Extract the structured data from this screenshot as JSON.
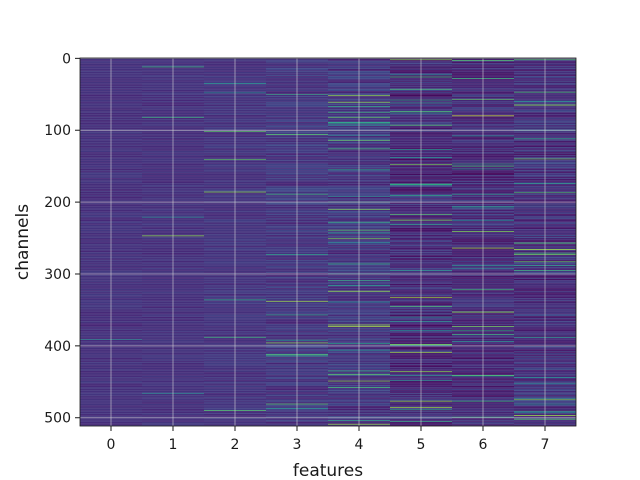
{
  "chart_data": {
    "type": "heatmap",
    "title": "",
    "xlabel": "features",
    "ylabel": "channels",
    "x_categories": [
      "0",
      "1",
      "2",
      "3",
      "4",
      "5",
      "6",
      "7"
    ],
    "y_ticks": [
      0,
      100,
      200,
      300,
      400,
      500
    ],
    "y_tick_labels": [
      "0",
      "100",
      "200",
      "300",
      "400",
      "500"
    ],
    "n_rows": 512,
    "n_cols": 8,
    "y_axis_inverted": true,
    "grid": true,
    "colormap": "viridis",
    "colorbar": false,
    "column_profiles": [
      {
        "feature": "0",
        "base": 0.18,
        "spread": 0.04,
        "bright_rate": 0.004
      },
      {
        "feature": "1",
        "base": 0.18,
        "spread": 0.04,
        "bright_rate": 0.006
      },
      {
        "feature": "2",
        "base": 0.19,
        "spread": 0.05,
        "bright_rate": 0.012
      },
      {
        "feature": "3",
        "base": 0.2,
        "spread": 0.08,
        "bright_rate": 0.03
      },
      {
        "feature": "4",
        "base": 0.2,
        "spread": 0.1,
        "bright_rate": 0.05
      },
      {
        "feature": "5",
        "base": 0.15,
        "spread": 0.12,
        "bright_rate": 0.05
      },
      {
        "feature": "6",
        "base": 0.15,
        "spread": 0.11,
        "bright_rate": 0.04
      },
      {
        "feature": "7",
        "base": 0.17,
        "spread": 0.12,
        "bright_rate": 0.05
      }
    ],
    "notable_cells": [
      {
        "feature": "6",
        "channel": 80,
        "value": 0.95
      },
      {
        "feature": "6",
        "channel": 82,
        "value": 0.0
      },
      {
        "feature": "5",
        "channel": 333,
        "value": 0.9
      },
      {
        "feature": "5",
        "channel": 372,
        "value": 0.0
      },
      {
        "feature": "4",
        "channel": 82,
        "value": 0.8
      },
      {
        "feature": "4",
        "channel": 200,
        "value": 0.7
      },
      {
        "feature": "7",
        "channel": 475,
        "value": 0.85
      },
      {
        "feature": "7",
        "channel": 2,
        "value": 0.8
      },
      {
        "feature": "3",
        "channel": 50,
        "value": 0.7
      },
      {
        "feature": "5",
        "channel": 140,
        "value": 0.0
      },
      {
        "feature": "6",
        "channel": 160,
        "value": 0.0
      }
    ],
    "colors": {
      "background": "#ffffff",
      "grid": "#d8d8d8",
      "axis": "#1a1a1a"
    }
  }
}
